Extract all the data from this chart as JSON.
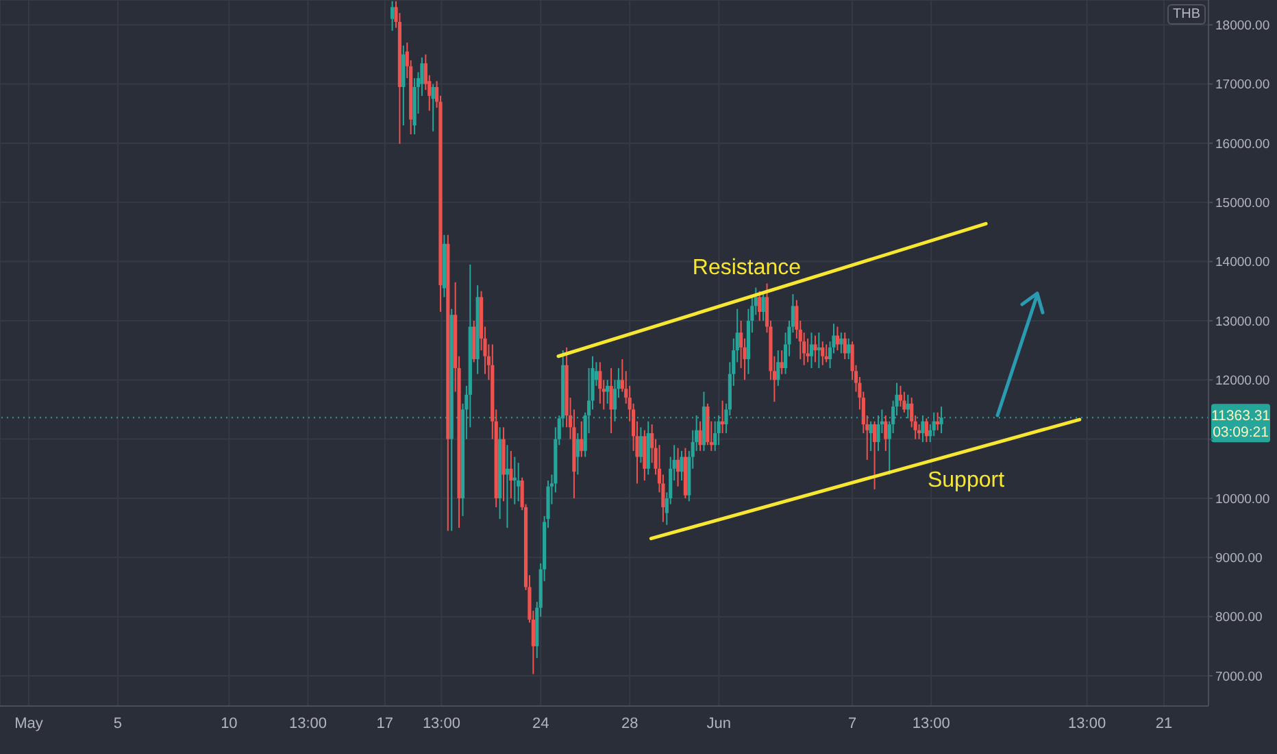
{
  "chart_data": {
    "type": "candlestick",
    "grid": true,
    "marker": "none",
    "xlim": [
      "--04-29T17:00",
      "--06-23T00:00"
    ],
    "ylim": [
      6490,
      18420
    ],
    "xticks": [
      {
        "value": "--05-01",
        "label": "May"
      },
      {
        "value": "--05-05",
        "label": "5"
      },
      {
        "value": "--05-10",
        "label": "10"
      },
      {
        "value": "--05-13T13:00",
        "label": "13:00"
      },
      {
        "value": "--05-17",
        "label": "17"
      },
      {
        "value": "--05-19T13:00",
        "label": "13:00"
      },
      {
        "value": "--05-24",
        "label": "24"
      },
      {
        "value": "--05-28",
        "label": "28"
      },
      {
        "value": "--06-01",
        "label": "Jun"
      },
      {
        "value": "--06-07",
        "label": "7"
      },
      {
        "value": "--06-10T13:00",
        "label": "13:00"
      },
      {
        "value": "--06-17T13:00",
        "label": "13:00"
      },
      {
        "value": "--06-21",
        "label": "21"
      }
    ],
    "yticks": [
      {
        "value": 7000,
        "label": "7000.00"
      },
      {
        "value": 8000,
        "label": "8000.00"
      },
      {
        "value": 9000,
        "label": "9000.00"
      },
      {
        "value": 10000,
        "label": "10000.00"
      },
      {
        "value": 11000,
        "label": null
      },
      {
        "value": 12000,
        "label": "12000.00"
      },
      {
        "value": 13000,
        "label": "13000.00"
      },
      {
        "value": 14000,
        "label": "14000.00"
      },
      {
        "value": 15000,
        "label": "15000.00"
      },
      {
        "value": 16000,
        "label": "16000.00"
      },
      {
        "value": 17000,
        "label": "17000.00"
      },
      {
        "value": 18000,
        "label": "18000.00"
      }
    ],
    "x": [
      "--05-17T08:00",
      "--05-17T12:00",
      "--05-17T16:00",
      "--05-17T20:00",
      "--05-18T00:00",
      "--05-18T04:00",
      "--05-18T08:00",
      "--05-18T12:00",
      "--05-18T16:00",
      "--05-18T20:00",
      "--05-19T00:00",
      "--05-19T04:00",
      "--05-19T08:00",
      "--05-19T12:00",
      "--05-19T16:00",
      "--05-19T20:00",
      "--05-20T00:00",
      "--05-20T04:00",
      "--05-20T08:00",
      "--05-20T12:00",
      "--05-20T16:00",
      "--05-20T20:00",
      "--05-21T00:00",
      "--05-21T04:00",
      "--05-21T08:00",
      "--05-21T12:00",
      "--05-21T16:00",
      "--05-21T20:00",
      "--05-22T00:00",
      "--05-22T04:00",
      "--05-22T08:00",
      "--05-22T12:00",
      "--05-22T16:00",
      "--05-22T20:00",
      "--05-23T00:00",
      "--05-23T04:00",
      "--05-23T08:00",
      "--05-23T12:00",
      "--05-23T16:00",
      "--05-23T20:00",
      "--05-24T00:00",
      "--05-24T04:00",
      "--05-24T08:00",
      "--05-24T12:00",
      "--05-24T16:00",
      "--05-24T20:00",
      "--05-25T00:00",
      "--05-25T04:00",
      "--05-25T08:00",
      "--05-25T12:00",
      "--05-25T16:00",
      "--05-25T20:00",
      "--05-26T00:00",
      "--05-26T04:00",
      "--05-26T08:00",
      "--05-26T12:00",
      "--05-26T16:00",
      "--05-26T20:00",
      "--05-27T00:00",
      "--05-27T04:00",
      "--05-27T08:00",
      "--05-27T12:00",
      "--05-27T16:00",
      "--05-27T20:00",
      "--05-28T00:00",
      "--05-28T04:00",
      "--05-28T08:00",
      "--05-28T12:00",
      "--05-28T16:00",
      "--05-28T20:00",
      "--05-29T00:00",
      "--05-29T04:00",
      "--05-29T08:00",
      "--05-29T12:00",
      "--05-29T16:00",
      "--05-29T20:00",
      "--05-30T00:00",
      "--05-30T04:00",
      "--05-30T08:00",
      "--05-30T12:00",
      "--05-30T16:00",
      "--05-30T20:00",
      "--05-31T00:00",
      "--05-31T04:00",
      "--05-31T08:00",
      "--05-31T12:00",
      "--05-31T16:00",
      "--05-31T20:00",
      "--06-01T00:00",
      "--06-01T04:00",
      "--06-01T08:00",
      "--06-01T12:00",
      "--06-01T16:00",
      "--06-01T20:00",
      "--06-02T00:00",
      "--06-02T04:00",
      "--06-02T08:00",
      "--06-02T12:00",
      "--06-02T16:00",
      "--06-02T20:00",
      "--06-03T00:00",
      "--06-03T04:00",
      "--06-03T08:00",
      "--06-03T12:00",
      "--06-03T16:00",
      "--06-03T20:00",
      "--06-04T00:00",
      "--06-04T04:00",
      "--06-04T08:00",
      "--06-04T12:00",
      "--06-04T16:00",
      "--06-04T20:00",
      "--06-05T00:00",
      "--06-05T04:00",
      "--06-05T08:00",
      "--06-05T12:00",
      "--06-05T16:00",
      "--06-05T20:00",
      "--06-06T00:00",
      "--06-06T04:00",
      "--06-06T08:00",
      "--06-06T12:00",
      "--06-06T16:00",
      "--06-06T20:00",
      "--06-07T00:00",
      "--06-07T04:00",
      "--06-07T08:00",
      "--06-07T12:00",
      "--06-07T16:00",
      "--06-07T20:00",
      "--06-08T00:00",
      "--06-08T04:00",
      "--06-08T08:00",
      "--06-08T12:00",
      "--06-08T16:00",
      "--06-08T20:00",
      "--06-09T00:00",
      "--06-09T04:00",
      "--06-09T08:00",
      "--06-09T12:00",
      "--06-09T16:00",
      "--06-09T20:00",
      "--06-10T00:00",
      "--06-10T04:00",
      "--06-10T08:00",
      "--06-10T12:00",
      "--06-10T16:00",
      "--06-10T20:00",
      "--06-11T00:00"
    ],
    "ohlc": [
      [
        18100,
        18400,
        17900,
        18300
      ],
      [
        18300,
        18400,
        17950,
        18050
      ],
      [
        18050,
        18200,
        15990,
        16950
      ],
      [
        16950,
        17650,
        16300,
        17500
      ],
      [
        17550,
        17700,
        17100,
        17300
      ],
      [
        17300,
        17400,
        16150,
        16400
      ],
      [
        16300,
        17100,
        16150,
        16950
      ],
      [
        16950,
        17200,
        16500,
        17100
      ],
      [
        17000,
        17450,
        16800,
        17350
      ],
      [
        17350,
        17500,
        16900,
        17000
      ],
      [
        17050,
        17150,
        16550,
        16800
      ],
      [
        16750,
        17000,
        16200,
        16950
      ],
      [
        16950,
        17050,
        16600,
        16700
      ],
      [
        16700,
        16800,
        13150,
        13600
      ],
      [
        13550,
        14450,
        13400,
        14300
      ],
      [
        14300,
        14450,
        9450,
        11000
      ],
      [
        11000,
        13200,
        9450,
        13100
      ],
      [
        13100,
        13650,
        11800,
        12200
      ],
      [
        12200,
        12400,
        9500,
        10000
      ],
      [
        10000,
        11600,
        9700,
        11500
      ],
      [
        11500,
        11900,
        11000,
        11750
      ],
      [
        11750,
        13950,
        11200,
        12900
      ],
      [
        12900,
        13000,
        12300,
        12350
      ],
      [
        12350,
        13600,
        12100,
        13400
      ],
      [
        13400,
        13500,
        12500,
        12700
      ],
      [
        12700,
        12900,
        12100,
        12400
      ],
      [
        12400,
        12600,
        12000,
        12250
      ],
      [
        12250,
        12600,
        11000,
        11300
      ],
      [
        11300,
        11500,
        9850,
        10000
      ],
      [
        10000,
        11200,
        9650,
        11000
      ],
      [
        11000,
        11200,
        9950,
        10400
      ],
      [
        10400,
        10900,
        9500,
        10500
      ],
      [
        10500,
        10800,
        10000,
        10300
      ],
      [
        10300,
        10700,
        9900,
        10350
      ],
      [
        10200,
        10600,
        9950,
        10300
      ],
      [
        10300,
        10350,
        9800,
        9850
      ],
      [
        9850,
        9900,
        8450,
        8500
      ],
      [
        8500,
        8700,
        7900,
        7950
      ],
      [
        7950,
        8100,
        7030,
        7500
      ],
      [
        7500,
        8250,
        7300,
        8150
      ],
      [
        8150,
        8900,
        8000,
        8800
      ],
      [
        8800,
        9700,
        8600,
        9600
      ],
      [
        9650,
        10300,
        9500,
        10200
      ],
      [
        10200,
        10400,
        9900,
        10250
      ],
      [
        10250,
        11200,
        10100,
        11000
      ],
      [
        11000,
        11400,
        10900,
        11350
      ],
      [
        11350,
        12500,
        11200,
        12250
      ],
      [
        12250,
        12550,
        11200,
        11400
      ],
      [
        11400,
        11700,
        11000,
        11200
      ],
      [
        11200,
        11500,
        10000,
        10450
      ],
      [
        10700,
        11100,
        10400,
        11000
      ],
      [
        11000,
        11300,
        10700,
        10800
      ],
      [
        10800,
        11450,
        10700,
        11400
      ],
      [
        11400,
        12200,
        11100,
        11650
      ],
      [
        11650,
        12400,
        11500,
        12200
      ],
      [
        12000,
        12300,
        11900,
        12150
      ],
      [
        12150,
        12300,
        11600,
        11850
      ],
      [
        11850,
        12000,
        11500,
        11800
      ],
      [
        11800,
        12000,
        11600,
        11900
      ],
      [
        11900,
        12200,
        11100,
        11500
      ],
      [
        11500,
        12000,
        11300,
        11850
      ],
      [
        11850,
        12200,
        11700,
        12000
      ],
      [
        12000,
        12350,
        11800,
        11850
      ],
      [
        11850,
        12150,
        11600,
        11700
      ],
      [
        11700,
        11900,
        11300,
        11500
      ],
      [
        11500,
        11600,
        10800,
        11050
      ],
      [
        11050,
        11300,
        10250,
        10700
      ],
      [
        10700,
        11200,
        10600,
        11050
      ],
      [
        11050,
        11150,
        10300,
        10500
      ],
      [
        10500,
        11300,
        10400,
        11100
      ],
      [
        11100,
        11250,
        10600,
        10850
      ],
      [
        10850,
        11000,
        10400,
        10500
      ],
      [
        10500,
        10900,
        10100,
        10250
      ],
      [
        10250,
        10400,
        9600,
        9850
      ],
      [
        9750,
        10100,
        9550,
        10000
      ],
      [
        10000,
        10700,
        9900,
        10500
      ],
      [
        10500,
        10900,
        10300,
        10650
      ],
      [
        10650,
        10850,
        10200,
        10450
      ],
      [
        10450,
        10800,
        10300,
        10700
      ],
      [
        10700,
        10850,
        10000,
        10050
      ],
      [
        10050,
        10800,
        9950,
        10700
      ],
      [
        10700,
        11150,
        10500,
        10950
      ],
      [
        10950,
        11400,
        10800,
        11150
      ],
      [
        11150,
        11300,
        10800,
        10900
      ],
      [
        10900,
        11800,
        10800,
        11550
      ],
      [
        11550,
        11600,
        10900,
        10950
      ],
      [
        10950,
        11300,
        10800,
        10900
      ],
      [
        10900,
        11300,
        10800,
        11100
      ],
      [
        11100,
        11400,
        10900,
        11300
      ],
      [
        11300,
        11650,
        11100,
        11250
      ],
      [
        11250,
        11600,
        11100,
        11500
      ],
      [
        11500,
        12300,
        11400,
        12100
      ],
      [
        12100,
        12700,
        11900,
        12500
      ],
      [
        12500,
        13200,
        12300,
        12800
      ],
      [
        12800,
        13000,
        12200,
        12550
      ],
      [
        12550,
        12700,
        12000,
        12350
      ],
      [
        12350,
        13200,
        12100,
        13000
      ],
      [
        13000,
        13400,
        12800,
        13250
      ],
      [
        13250,
        13560,
        13100,
        13400
      ],
      [
        13400,
        13500,
        13000,
        13150
      ],
      [
        13150,
        13450,
        13000,
        13400
      ],
      [
        13400,
        13630,
        12800,
        12900
      ],
      [
        12900,
        13000,
        12000,
        12150
      ],
      [
        12150,
        12400,
        11630,
        12000
      ],
      [
        12000,
        12500,
        11900,
        12300
      ],
      [
        12300,
        12500,
        12100,
        12200
      ],
      [
        12200,
        12800,
        12100,
        12600
      ],
      [
        12600,
        13000,
        12400,
        12900
      ],
      [
        12900,
        13450,
        12800,
        13250
      ],
      [
        13250,
        13350,
        12700,
        12850
      ],
      [
        12850,
        13000,
        12350,
        12650
      ],
      [
        12650,
        12800,
        12250,
        12450
      ],
      [
        12450,
        12700,
        12300,
        12400
      ],
      [
        12400,
        12800,
        12200,
        12600
      ],
      [
        12600,
        12750,
        12300,
        12500
      ],
      [
        12500,
        12800,
        12200,
        12550
      ],
      [
        12550,
        12650,
        12250,
        12400
      ],
      [
        12400,
        12600,
        12300,
        12350
      ],
      [
        12350,
        12650,
        12200,
        12550
      ],
      [
        12550,
        12950,
        12450,
        12750
      ],
      [
        12750,
        12900,
        12500,
        12600
      ],
      [
        12600,
        12800,
        12450,
        12700
      ],
      [
        12700,
        12800,
        12350,
        12450
      ],
      [
        12450,
        12700,
        12350,
        12600
      ],
      [
        12600,
        12650,
        12000,
        12150
      ],
      [
        12150,
        12250,
        11800,
        11950
      ],
      [
        11950,
        12050,
        11500,
        11700
      ],
      [
        11700,
        11800,
        11100,
        11250
      ],
      [
        11250,
        11400,
        10650,
        11150
      ],
      [
        11100,
        11300,
        10800,
        11250
      ],
      [
        11250,
        11300,
        10150,
        10950
      ],
      [
        10950,
        11400,
        10800,
        11250
      ],
      [
        11250,
        11500,
        11100,
        11300
      ],
      [
        11300,
        11400,
        10800,
        11000
      ],
      [
        11000,
        11300,
        10400,
        11250
      ],
      [
        11250,
        11650,
        11100,
        11550
      ],
      [
        11550,
        11950,
        11400,
        11750
      ],
      [
        11750,
        11900,
        11550,
        11650
      ],
      [
        11650,
        11800,
        11450,
        11500
      ],
      [
        11500,
        11750,
        11350,
        11600
      ],
      [
        11600,
        11700,
        11200,
        11300
      ],
      [
        11300,
        11400,
        11000,
        11150
      ],
      [
        11150,
        11250,
        11000,
        11100
      ],
      [
        11100,
        11400,
        10950,
        11300
      ],
      [
        11300,
        11350,
        10950,
        11050
      ],
      [
        11050,
        11250,
        10950,
        11150
      ],
      [
        11150,
        11450,
        11050,
        11300
      ],
      [
        11300,
        11450,
        11150,
        11250
      ],
      [
        11250,
        11550,
        11100,
        11363.31
      ]
    ],
    "colors": [
      "#26a69a",
      "#ef5350",
      "#ef5350",
      "#26a69a",
      "#ef5350",
      "#ef5350",
      "#26a69a",
      "#26a69a",
      "#26a69a",
      "#ef5350",
      "#ef5350",
      "#26a69a",
      "#ef5350",
      "#ef5350",
      "#26a69a",
      "#ef5350",
      "#26a69a",
      "#ef5350",
      "#ef5350",
      "#26a69a",
      "#26a69a",
      "#26a69a",
      "#ef5350",
      "#26a69a",
      "#ef5350",
      "#ef5350",
      "#ef5350",
      "#ef5350",
      "#ef5350",
      "#26a69a",
      "#ef5350",
      "#26a69a",
      "#ef5350",
      "#26a69a",
      "#26a69a",
      "#ef5350",
      "#ef5350",
      "#ef5350",
      "#ef5350",
      "#26a69a",
      "#26a69a",
      "#26a69a",
      "#26a69a",
      "#26a69a",
      "#26a69a",
      "#26a69a",
      "#26a69a",
      "#ef5350",
      "#ef5350",
      "#ef5350",
      "#26a69a",
      "#ef5350",
      "#26a69a",
      "#26a69a",
      "#26a69a",
      "#26a69a",
      "#ef5350",
      "#ef5350",
      "#26a69a",
      "#ef5350",
      "#26a69a",
      "#26a69a",
      "#ef5350",
      "#ef5350",
      "#ef5350",
      "#ef5350",
      "#ef5350",
      "#26a69a",
      "#ef5350",
      "#26a69a",
      "#ef5350",
      "#ef5350",
      "#ef5350",
      "#ef5350",
      "#26a69a",
      "#26a69a",
      "#26a69a",
      "#ef5350",
      "#26a69a",
      "#ef5350",
      "#26a69a",
      "#26a69a",
      "#26a69a",
      "#ef5350",
      "#26a69a",
      "#ef5350",
      "#ef5350",
      "#26a69a",
      "#26a69a",
      "#ef5350",
      "#26a69a",
      "#26a69a",
      "#26a69a",
      "#26a69a",
      "#ef5350",
      "#ef5350",
      "#26a69a",
      "#26a69a",
      "#26a69a",
      "#ef5350",
      "#26a69a",
      "#ef5350",
      "#ef5350",
      "#ef5350",
      "#26a69a",
      "#ef5350",
      "#26a69a",
      "#26a69a",
      "#26a69a",
      "#ef5350",
      "#ef5350",
      "#ef5350",
      "#ef5350",
      "#26a69a",
      "#ef5350",
      "#26a69a",
      "#ef5350",
      "#ef5350",
      "#26a69a",
      "#26a69a",
      "#ef5350",
      "#26a69a",
      "#ef5350",
      "#26a69a",
      "#ef5350",
      "#ef5350",
      "#ef5350",
      "#ef5350",
      "#ef5350",
      "#26a69a",
      "#ef5350",
      "#26a69a",
      "#26a69a",
      "#ef5350",
      "#26a69a",
      "#26a69a",
      "#26a69a",
      "#ef5350",
      "#ef5350",
      "#26a69a",
      "#ef5350",
      "#ef5350",
      "#ef5350",
      "#26a69a",
      "#ef5350",
      "#26a69a",
      "#26a69a",
      "#ef5350",
      "#26a69a"
    ],
    "series": [
      {
        "type": "line",
        "color": "#f7e733",
        "x": [
          "--05-24T19:00",
          "--06-13T00:00"
        ],
        "values": [
          12400,
          14640
        ]
      },
      {
        "type": "line",
        "color": "#f7e733",
        "x": [
          "--05-28T23:00",
          "--06-17T05:00"
        ],
        "values": [
          9320,
          11330
        ]
      }
    ],
    "ref_lines": [
      {
        "axis": "y",
        "value": 11363.31,
        "label": "11363.31",
        "color": "#26a69a",
        "line_style": "dotted"
      }
    ],
    "annotations": [
      "THB",
      "03:09:21",
      "Resistance",
      "Support"
    ]
  }
}
